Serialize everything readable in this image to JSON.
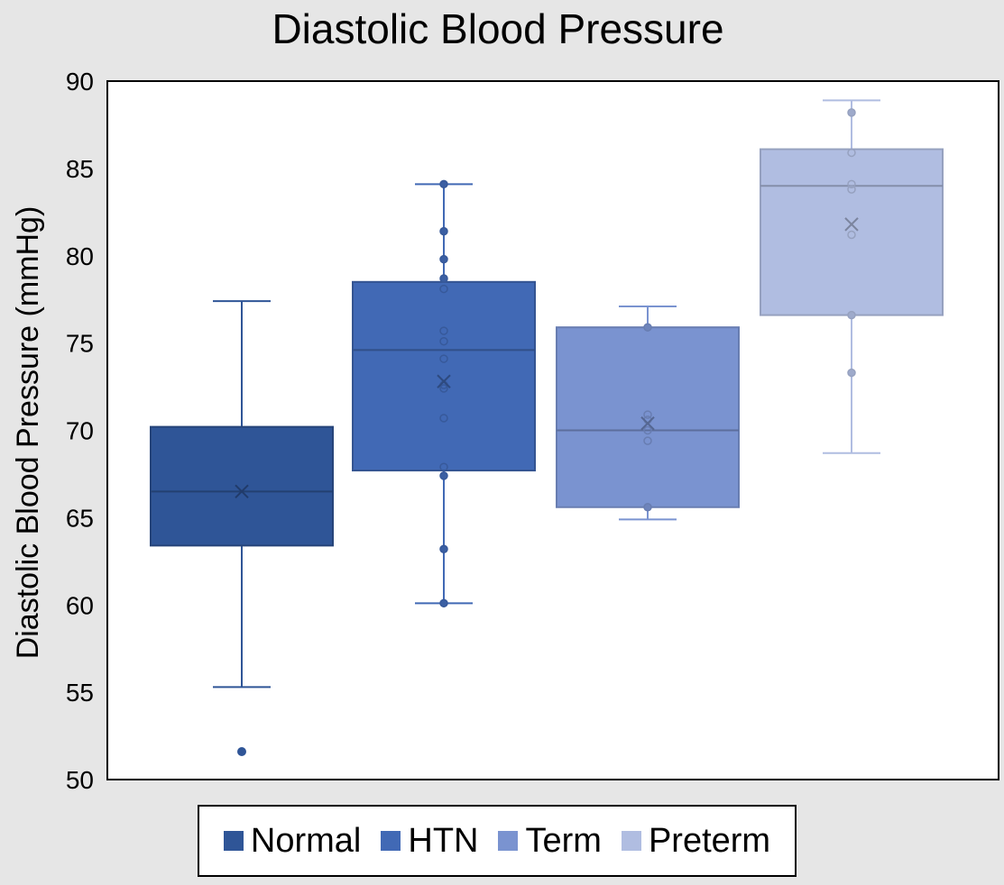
{
  "chart_data": {
    "type": "box",
    "title": "Diastolic Blood Pressure",
    "xlabel": "",
    "ylabel": "Diastolic Blood Pressure (mmHg)",
    "ylim": [
      50,
      90
    ],
    "yticks": [
      50,
      55,
      60,
      65,
      70,
      75,
      80,
      85,
      90
    ],
    "grid": false,
    "legend_position": "bottom",
    "series": [
      {
        "name": "Normal",
        "color": "#2f5597",
        "min": 55.3,
        "q1": 63.4,
        "median": 66.5,
        "mean": 66.5,
        "q3": 70.2,
        "max": 77.4,
        "points": [],
        "outliers": [
          51.6
        ]
      },
      {
        "name": "HTN",
        "color": "#4169b5",
        "min": 60.1,
        "q1": 67.7,
        "median": 74.6,
        "mean": 72.8,
        "q3": 78.5,
        "max": 84.1,
        "points": [
          60.1,
          63.2,
          67.4,
          67.9,
          70.7,
          72.4,
          72.6,
          74.1,
          75.1,
          75.7,
          78.1,
          78.7,
          79.8,
          81.4,
          84.1
        ],
        "outliers": []
      },
      {
        "name": "Term",
        "color": "#7a93d0",
        "min": 64.9,
        "q1": 65.6,
        "median": 70.0,
        "mean": 70.4,
        "q3": 75.9,
        "max": 77.1,
        "points": [
          65.6,
          69.4,
          70.0,
          70.6,
          70.9,
          75.9
        ],
        "outliers": []
      },
      {
        "name": "Preterm",
        "color": "#b0bde1",
        "min": 68.7,
        "q1": 76.6,
        "median": 84.0,
        "mean": 81.8,
        "q3": 86.1,
        "max": 88.9,
        "points": [
          73.3,
          76.6,
          81.2,
          83.8,
          84.1,
          85.9,
          88.2
        ],
        "outliers": []
      }
    ]
  }
}
